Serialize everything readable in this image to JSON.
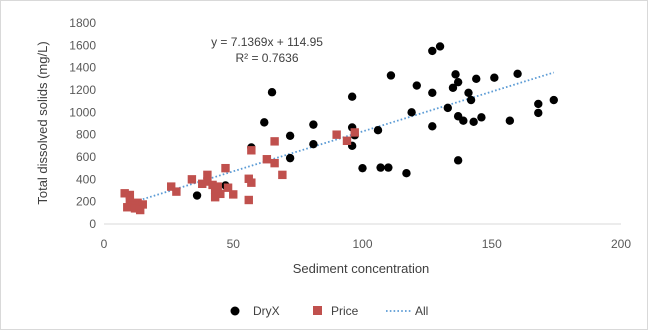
{
  "chart_data": {
    "type": "scatter",
    "xlabel": "Sediment concentration",
    "ylabel": "Total dissolved solids (mg/L)",
    "xlim": [
      0,
      200
    ],
    "ylim": [
      0,
      1800
    ],
    "x_ticks": [
      0,
      50,
      100,
      150,
      200
    ],
    "y_ticks": [
      0,
      200,
      400,
      600,
      800,
      1000,
      1200,
      1400,
      1600,
      1800
    ],
    "grid": false,
    "legend_position": "bottom",
    "trendline": {
      "series_name": "All",
      "equation": "y = 7.1369x + 114.95",
      "r_squared": "R² = 0.7636",
      "slope": 7.1369,
      "intercept": 114.95,
      "x_range": [
        8,
        174
      ],
      "color": "#5b9bd5",
      "style": "dotted"
    },
    "series": [
      {
        "name": "DryX",
        "marker": "circle",
        "color": "#000000",
        "points": [
          [
            130,
            1590
          ],
          [
            127,
            1550
          ],
          [
            160,
            1345
          ],
          [
            136,
            1340
          ],
          [
            111,
            1330
          ],
          [
            151,
            1310
          ],
          [
            144,
            1300
          ],
          [
            137,
            1270
          ],
          [
            121,
            1240
          ],
          [
            135,
            1220
          ],
          [
            65,
            1180
          ],
          [
            127,
            1175
          ],
          [
            141,
            1175
          ],
          [
            96,
            1140
          ],
          [
            142,
            1110
          ],
          [
            174,
            1110
          ],
          [
            168,
            1075
          ],
          [
            133,
            1040
          ],
          [
            119,
            1000
          ],
          [
            168,
            995
          ],
          [
            137,
            965
          ],
          [
            146,
            955
          ],
          [
            139,
            925
          ],
          [
            157,
            925
          ],
          [
            143,
            915
          ],
          [
            62,
            910
          ],
          [
            81,
            890
          ],
          [
            127,
            875
          ],
          [
            96,
            865
          ],
          [
            106,
            840
          ],
          [
            72,
            790
          ],
          [
            97,
            795
          ],
          [
            96,
            700
          ],
          [
            57,
            685
          ],
          [
            81,
            715
          ],
          [
            72,
            590
          ],
          [
            137,
            570
          ],
          [
            100,
            500
          ],
          [
            107,
            505
          ],
          [
            110,
            505
          ],
          [
            117,
            455
          ],
          [
            47,
            345
          ],
          [
            36,
            255
          ]
        ]
      },
      {
        "name": "Price",
        "marker": "square",
        "color": "#c0504d",
        "points": [
          [
            90,
            800
          ],
          [
            97,
            820
          ],
          [
            94,
            745
          ],
          [
            66,
            740
          ],
          [
            57,
            660
          ],
          [
            63,
            580
          ],
          [
            66,
            545
          ],
          [
            47,
            500
          ],
          [
            69,
            440
          ],
          [
            40,
            440
          ],
          [
            56,
            405
          ],
          [
            34,
            400
          ],
          [
            40,
            380
          ],
          [
            57,
            370
          ],
          [
            38,
            360
          ],
          [
            42,
            350
          ],
          [
            44,
            335
          ],
          [
            26,
            335
          ],
          [
            48,
            325
          ],
          [
            43,
            305
          ],
          [
            28,
            290
          ],
          [
            45,
            270
          ],
          [
            50,
            265
          ],
          [
            8,
            275
          ],
          [
            10,
            260
          ],
          [
            43,
            240
          ],
          [
            56,
            215
          ],
          [
            10,
            205
          ],
          [
            13,
            190
          ],
          [
            15,
            175
          ],
          [
            11,
            165
          ],
          [
            9,
            150
          ],
          [
            12,
            140
          ],
          [
            14,
            125
          ]
        ]
      }
    ]
  }
}
